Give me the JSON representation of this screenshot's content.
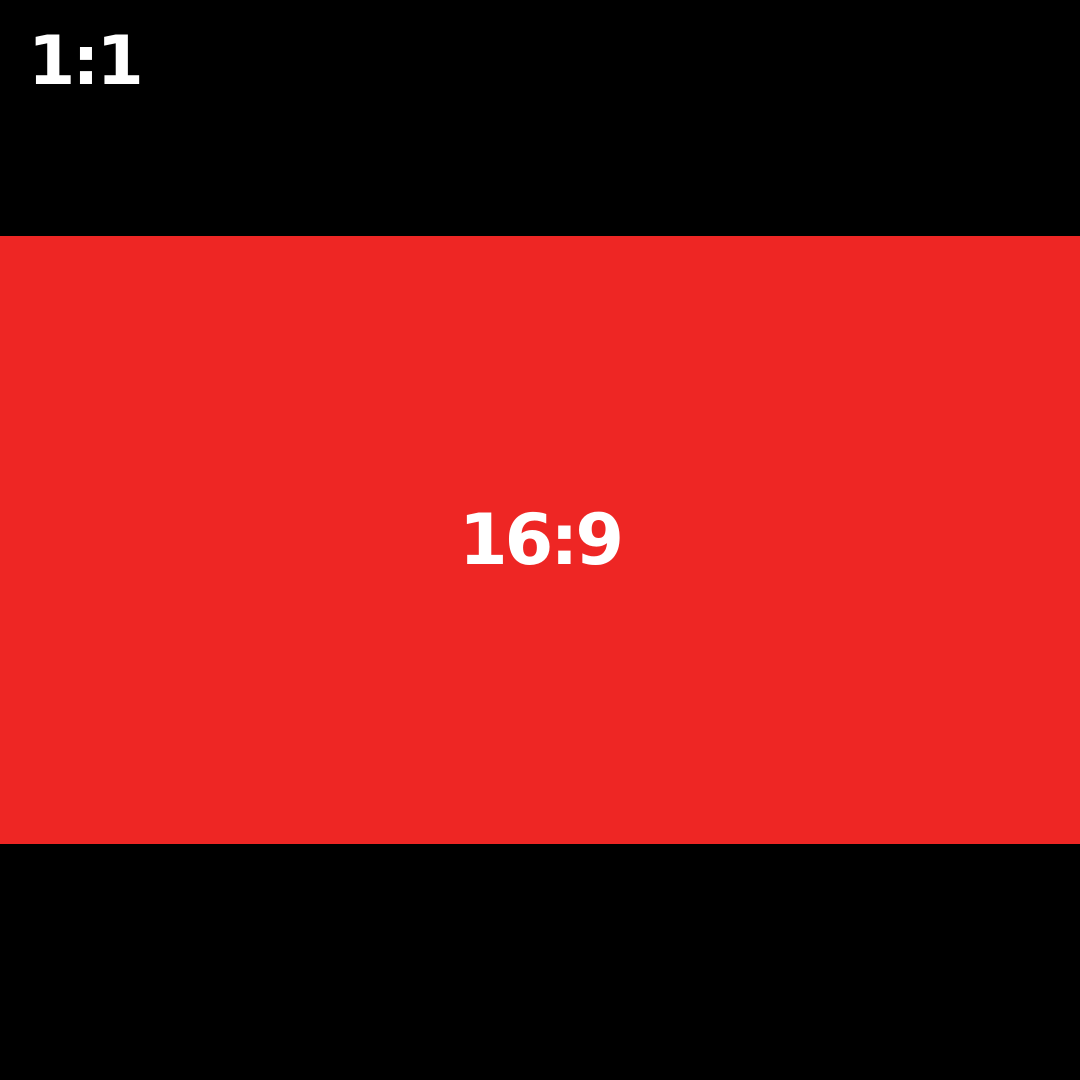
{
  "outer": {
    "ratio_label": "1:1",
    "background_color": "#000000"
  },
  "inner": {
    "ratio_label": "16:9",
    "background_color": "#ee2624"
  },
  "text_color": "#ffffff"
}
